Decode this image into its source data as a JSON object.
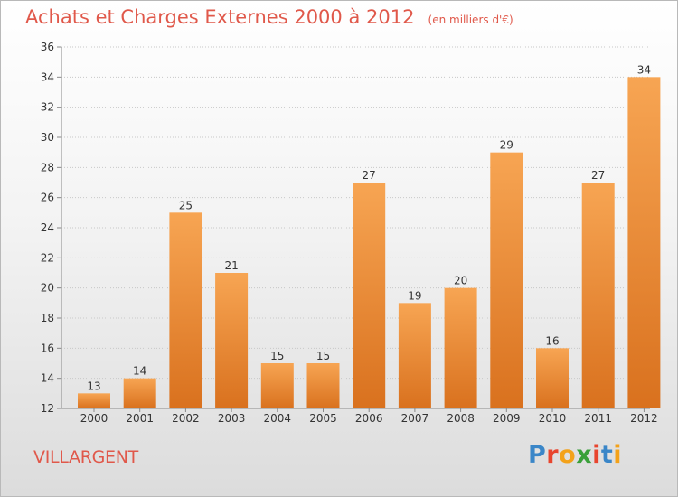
{
  "header": {
    "title": "Achats et Charges Externes 2000 à 2012",
    "unit": "(en milliers d'€)"
  },
  "footer": {
    "city": "VILLARGENT",
    "logo_letters": [
      "P",
      "r",
      "o",
      "x",
      "i",
      "t",
      "i"
    ],
    "logo_colors": [
      "#3a86c8",
      "#e8452e",
      "#f3a21a",
      "#3aa03a",
      "#e8452e",
      "#3a86c8",
      "#f3a21a"
    ]
  },
  "colors": {
    "bar_top": "#f7a553",
    "bar_bottom": "#d9711e",
    "title": "#e0584a"
  },
  "chart_data": {
    "type": "bar",
    "title": "Achats et Charges Externes 2000 à 2012",
    "subtitle": "(en milliers d'€)",
    "categories": [
      "2000",
      "2001",
      "2002",
      "2003",
      "2004",
      "2005",
      "2006",
      "2007",
      "2008",
      "2009",
      "2010",
      "2011",
      "2012"
    ],
    "values": [
      13,
      14,
      25,
      21,
      15,
      15,
      27,
      19,
      20,
      29,
      16,
      27,
      34
    ],
    "ylim": [
      12,
      36
    ],
    "yticks": [
      12,
      14,
      16,
      18,
      20,
      22,
      24,
      26,
      28,
      30,
      32,
      34,
      36
    ],
    "grid": true,
    "xlabel": "",
    "ylabel": ""
  }
}
